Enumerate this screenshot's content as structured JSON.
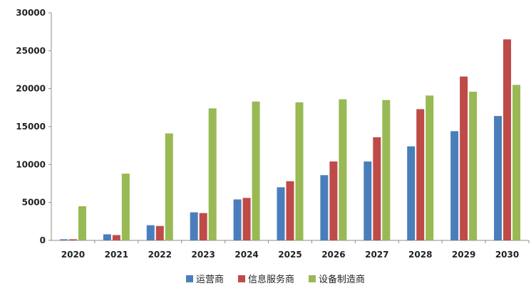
{
  "chart_data": {
    "type": "bar",
    "title": "",
    "xlabel": "",
    "ylabel": "",
    "ylim": [
      0,
      30000
    ],
    "yticks": [
      0,
      5000,
      10000,
      15000,
      20000,
      25000,
      30000
    ],
    "grid": false,
    "legend_position": "bottom",
    "categories": [
      "2020",
      "2021",
      "2022",
      "2023",
      "2024",
      "2025",
      "2026",
      "2027",
      "2028",
      "2029",
      "2030"
    ],
    "series": [
      {
        "name": "运营商",
        "color": "#4a7ebb",
        "values": [
          150,
          800,
          2000,
          3700,
          5400,
          7000,
          8600,
          10400,
          12400,
          14400,
          16400
        ]
      },
      {
        "name": "信息服务商",
        "color": "#be4b48",
        "values": [
          150,
          700,
          1900,
          3600,
          5600,
          7800,
          10400,
          13600,
          17300,
          21600,
          26500
        ]
      },
      {
        "name": "设备制造商",
        "color": "#98b954",
        "values": [
          4500,
          8800,
          14100,
          17400,
          18300,
          18200,
          18600,
          18500,
          19100,
          19600,
          20500
        ]
      }
    ]
  }
}
